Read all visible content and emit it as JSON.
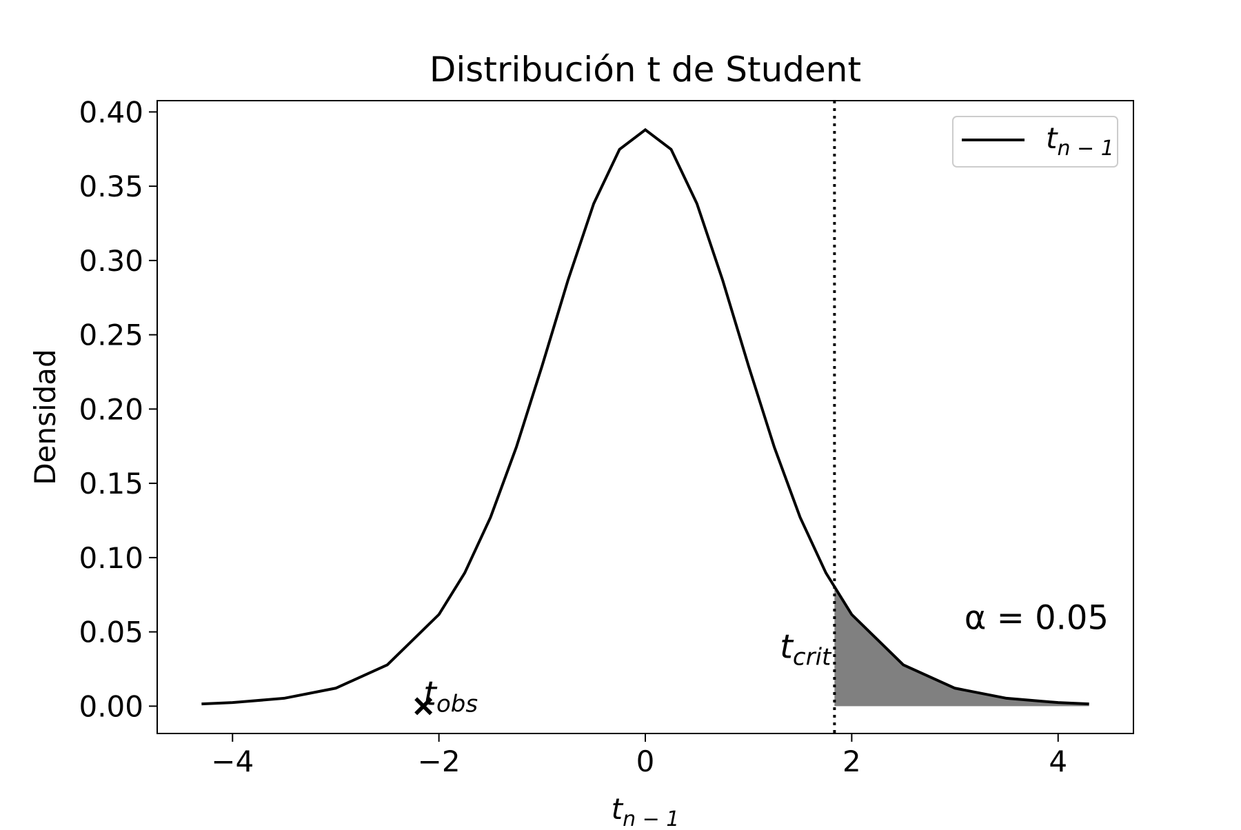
{
  "chart_data": {
    "type": "line",
    "title": "Distribución t de Student",
    "xlabel": {
      "base": "t",
      "sub": "n − 1"
    },
    "ylabel": "Densidad",
    "xlim": [
      -4.73,
      4.73
    ],
    "ylim": [
      -0.0184,
      0.4076
    ],
    "xticks": [
      {
        "value": -4,
        "label": "−4"
      },
      {
        "value": -2,
        "label": "−2"
      },
      0,
      2,
      4
    ],
    "yticks": [
      {
        "value": 0,
        "label": "0.00"
      },
      {
        "value": 0.05,
        "label": "0.05"
      },
      {
        "value": 0.1,
        "label": "0.10"
      },
      {
        "value": 0.15,
        "label": "0.15"
      },
      {
        "value": 0.2,
        "label": "0.20"
      },
      {
        "value": 0.25,
        "label": "0.25"
      },
      {
        "value": 0.3,
        "label": "0.30"
      },
      {
        "value": 0.35,
        "label": "0.35"
      },
      {
        "value": 0.4,
        "label": "0.40"
      }
    ],
    "series": [
      {
        "name": {
          "base": "t",
          "sub": "n − 1"
        },
        "color": "#000000",
        "x": [
          -4.3,
          -4,
          -3.5,
          -3,
          -2.5,
          -2,
          -1.75,
          -1.5,
          -1.25,
          -1,
          -0.75,
          -0.5,
          -0.25,
          0,
          0.25,
          0.5,
          0.75,
          1,
          1.25,
          1.5,
          1.75,
          2,
          2.5,
          3,
          3.5,
          4,
          4.3
        ],
        "values": [
          0.0015,
          0.0024,
          0.0053,
          0.0121,
          0.0278,
          0.0617,
          0.0897,
          0.1271,
          0.1743,
          0.2291,
          0.2866,
          0.3383,
          0.3748,
          0.388,
          0.3748,
          0.3383,
          0.2866,
          0.2291,
          0.1743,
          0.1271,
          0.0897,
          0.0617,
          0.0278,
          0.0121,
          0.0053,
          0.0024,
          0.0015
        ]
      }
    ],
    "shade": {
      "color": "#808080",
      "x": [
        1.833,
        2,
        2.5,
        3,
        3.5,
        4,
        4.3
      ],
      "values": [
        0.0794,
        0.0617,
        0.0278,
        0.0121,
        0.0053,
        0.0024,
        0.0015
      ]
    },
    "critical": {
      "x": 1.833,
      "label": {
        "base": "t",
        "sub": "crit"
      }
    },
    "observed": {
      "x": -2.15,
      "y": 0,
      "label": {
        "base": "t",
        "sub": "obs"
      }
    },
    "alpha_label": "α = 0.05",
    "legend": "upper right"
  }
}
